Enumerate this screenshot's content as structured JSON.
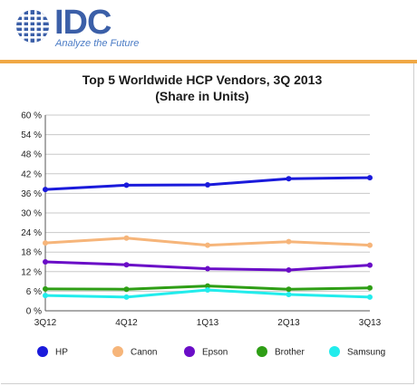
{
  "header": {
    "logo_text": "IDC",
    "tagline": "Analyze the Future"
  },
  "colors": {
    "rule": "#f0a845",
    "brand": "#3b5fa8"
  },
  "chart_data": {
    "type": "line",
    "title": "Top 5 Worldwide HCP Vendors, 3Q 2013",
    "subtitle": "(Share in Units)",
    "categories": [
      "3Q12",
      "4Q12",
      "1Q13",
      "2Q13",
      "3Q13"
    ],
    "y_ticks": [
      "0 %",
      "6 %",
      "12 %",
      "18 %",
      "24 %",
      "30 %",
      "36 %",
      "42 %",
      "48 %",
      "54 %",
      "60 %"
    ],
    "ylim": [
      0,
      60
    ],
    "grid": "horizontal",
    "legend_position": "bottom",
    "series": [
      {
        "name": "HP",
        "color": "#1a1adb",
        "values": [
          37.2,
          38.5,
          38.6,
          40.5,
          40.8
        ]
      },
      {
        "name": "Canon",
        "color": "#f6b57a",
        "values": [
          20.8,
          22.3,
          20.1,
          21.2,
          20.1
        ]
      },
      {
        "name": "Epson",
        "color": "#6a0dc7",
        "values": [
          15.0,
          14.1,
          12.9,
          12.5,
          14.0
        ]
      },
      {
        "name": "Brother",
        "color": "#2e9e15",
        "values": [
          6.7,
          6.6,
          7.6,
          6.6,
          7.0
        ]
      },
      {
        "name": "Samsung",
        "color": "#22ecec",
        "values": [
          4.7,
          4.2,
          6.4,
          5.0,
          4.2
        ]
      }
    ]
  }
}
